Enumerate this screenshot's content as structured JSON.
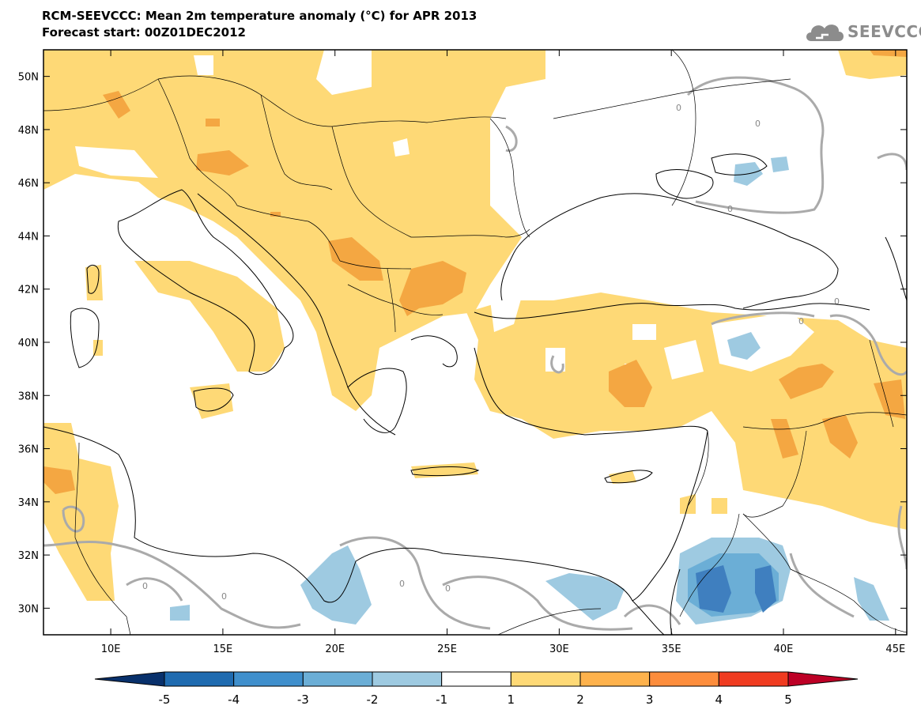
{
  "header": {
    "title": "RCM-SEEVCCC: Mean 2m temperature anomaly (°C) for APR 2013",
    "subtitle": "Forecast start: 00Z01DEC2012",
    "logo_text": "SEEVCCC"
  },
  "map": {
    "projection": "lat-lon",
    "lon_range": [
      7,
      45.5
    ],
    "lat_range": [
      29,
      51
    ],
    "lat_ticks": [
      "50N",
      "48N",
      "46N",
      "44N",
      "42N",
      "40N",
      "38N",
      "36N",
      "34N",
      "32N",
      "30N"
    ],
    "lon_ticks": [
      "10E",
      "15E",
      "20E",
      "25E",
      "30E",
      "35E",
      "40E",
      "45E"
    ],
    "zero_contour_label": "0"
  },
  "colorbar": {
    "labels": [
      "-5",
      "-4",
      "-3",
      "-2",
      "-1",
      "1",
      "2",
      "3",
      "4",
      "5"
    ],
    "colors": [
      "#08306b",
      "#1f6bb0",
      "#3f8fcc",
      "#6baed6",
      "#9ecae1",
      "#ffffff",
      "#fed976",
      "#feb24c",
      "#fd8d3c",
      "#f03b20",
      "#bd0026"
    ]
  },
  "colors": {
    "anomaly_pos_1": "#fed976",
    "anomaly_pos_2": "#f4a742",
    "anomaly_neg_1": "#9ecae1",
    "anomaly_neg_2": "#6baed6",
    "anomaly_neg_3": "#3f7fbf",
    "zero_contour": "#aaaaaa",
    "coastline": "#000000"
  }
}
